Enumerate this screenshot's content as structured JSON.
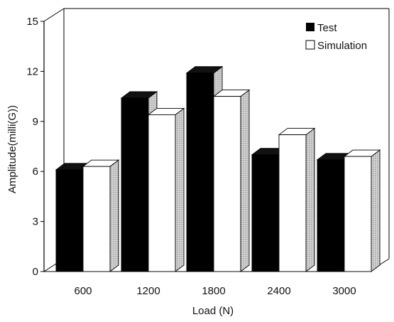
{
  "chart_data": {
    "type": "bar",
    "categories": [
      "600",
      "1200",
      "1800",
      "2400",
      "3000"
    ],
    "series": [
      {
        "name": "Test",
        "values": [
          6.1,
          10.4,
          11.9,
          7.0,
          6.7
        ]
      },
      {
        "name": "Simulation",
        "values": [
          6.3,
          9.4,
          10.5,
          8.2,
          6.9
        ]
      }
    ],
    "xlabel": "Load (N)",
    "ylabel": "Amplitude(milli(G))",
    "ylim": [
      0,
      15
    ],
    "yticks": [
      "0",
      "3",
      "6",
      "9",
      "12",
      "15"
    ],
    "legend": "top-right",
    "grid": false,
    "colors": {
      "test": "#000000",
      "simulation": "#ffffff",
      "side": "#bdbdbd"
    }
  }
}
